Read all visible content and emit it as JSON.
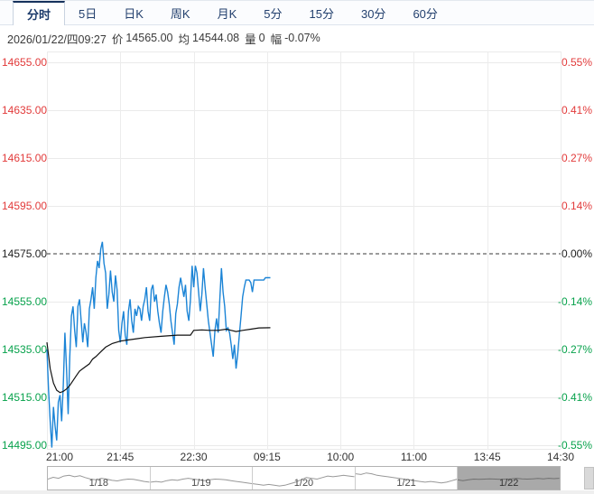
{
  "tabs": {
    "items": [
      {
        "label": "分时",
        "active": true
      },
      {
        "label": "5日",
        "active": false
      },
      {
        "label": "日K",
        "active": false
      },
      {
        "label": "周K",
        "active": false
      },
      {
        "label": "月K",
        "active": false
      },
      {
        "label": "5分",
        "active": false
      },
      {
        "label": "15分",
        "active": false
      },
      {
        "label": "30分",
        "active": false
      },
      {
        "label": "60分",
        "active": false
      }
    ]
  },
  "info_bar": {
    "datetime": "2026/01/22/四09:27",
    "price_label": "价",
    "price_value": "14565.00",
    "avg_label": "均",
    "avg_value": "14544.08",
    "volume_label": "量",
    "volume_value": "0",
    "range_label": "幅",
    "range_value": "-0.07%"
  },
  "colors": {
    "up": "#e23b3b",
    "down": "#08a24c",
    "flat": "#222222",
    "price_line": "#1b84d6",
    "avg_line": "#111111",
    "grid": "#eaeaea",
    "prev_close_dash": "#3a3a3a",
    "nav_selected_bg": "#a9a9a9",
    "nav_spark": "#989898",
    "active_tab_accent": "#16325c"
  },
  "chart_data": {
    "type": "line",
    "title": "Intraday (分时) price and average line",
    "prev_close": 14575.0,
    "ylim": [
      14495,
      14655
    ],
    "y_axis_left": [
      {
        "text": "14655.00",
        "tone": "up"
      },
      {
        "text": "14635.00",
        "tone": "up"
      },
      {
        "text": "14615.00",
        "tone": "up"
      },
      {
        "text": "14595.00",
        "tone": "up"
      },
      {
        "text": "14575.00",
        "tone": "flat"
      },
      {
        "text": "14555.00",
        "tone": "down"
      },
      {
        "text": "14535.00",
        "tone": "down"
      },
      {
        "text": "14515.00",
        "tone": "down"
      },
      {
        "text": "14495.00",
        "tone": "down"
      }
    ],
    "y_axis_right": [
      {
        "text": "0.55%",
        "tone": "up"
      },
      {
        "text": "0.41%",
        "tone": "up"
      },
      {
        "text": "0.27%",
        "tone": "up"
      },
      {
        "text": "0.14%",
        "tone": "up"
      },
      {
        "text": "0.00%",
        "tone": "flat"
      },
      {
        "text": "-0.14%",
        "tone": "down"
      },
      {
        "text": "-0.27%",
        "tone": "down"
      },
      {
        "text": "-0.41%",
        "tone": "down"
      },
      {
        "text": "-0.55%",
        "tone": "down"
      }
    ],
    "x_ticks": [
      "21:00",
      "21:45",
      "22:30",
      "09:15",
      "10:00",
      "11:00",
      "13:45",
      "14:30"
    ],
    "session_minutes_total": 315,
    "series": [
      {
        "name": "price",
        "points": [
          [
            0,
            14535
          ],
          [
            1,
            14518
          ],
          [
            2,
            14505
          ],
          [
            3,
            14494
          ],
          [
            4,
            14511
          ],
          [
            5,
            14503
          ],
          [
            6,
            14497
          ],
          [
            7,
            14513
          ],
          [
            8,
            14516
          ],
          [
            9,
            14505
          ],
          [
            10,
            14520
          ],
          [
            11,
            14542
          ],
          [
            12,
            14527
          ],
          [
            13,
            14508
          ],
          [
            14,
            14532
          ],
          [
            15,
            14549
          ],
          [
            16,
            14553
          ],
          [
            17,
            14543
          ],
          [
            18,
            14536
          ],
          [
            19,
            14553
          ],
          [
            20,
            14556
          ],
          [
            21,
            14547
          ],
          [
            22,
            14538
          ],
          [
            23,
            14546
          ],
          [
            24,
            14542
          ],
          [
            25,
            14536
          ],
          [
            26,
            14552
          ],
          [
            27,
            14556
          ],
          [
            28,
            14561
          ],
          [
            29,
            14552
          ],
          [
            30,
            14565
          ],
          [
            31,
            14572
          ],
          [
            32,
            14569
          ],
          [
            33,
            14577
          ],
          [
            34,
            14580
          ],
          [
            35,
            14571
          ],
          [
            36,
            14567
          ],
          [
            37,
            14552
          ],
          [
            38,
            14558
          ],
          [
            39,
            14568
          ],
          [
            40,
            14559
          ],
          [
            41,
            14555
          ],
          [
            42,
            14566
          ],
          [
            43,
            14560
          ],
          [
            44,
            14543
          ],
          [
            45,
            14538
          ],
          [
            46,
            14546
          ],
          [
            47,
            14551
          ],
          [
            48,
            14541
          ],
          [
            49,
            14537
          ],
          [
            50,
            14551
          ],
          [
            51,
            14556
          ],
          [
            52,
            14547
          ],
          [
            53,
            14542
          ],
          [
            54,
            14552
          ],
          [
            55,
            14549
          ],
          [
            56,
            14553
          ],
          [
            57,
            14552
          ],
          [
            58,
            14547
          ],
          [
            59,
            14553
          ],
          [
            60,
            14556
          ],
          [
            61,
            14561
          ],
          [
            62,
            14551
          ],
          [
            63,
            14547
          ],
          [
            64,
            14560
          ],
          [
            65,
            14562
          ],
          [
            66,
            14555
          ],
          [
            67,
            14558
          ],
          [
            68,
            14551
          ],
          [
            69,
            14546
          ],
          [
            70,
            14542
          ],
          [
            71,
            14551
          ],
          [
            72,
            14557
          ],
          [
            73,
            14562
          ],
          [
            74,
            14559
          ],
          [
            75,
            14554
          ],
          [
            76,
            14547
          ],
          [
            77,
            14542
          ],
          [
            78,
            14537
          ],
          [
            79,
            14550
          ],
          [
            80,
            14554
          ],
          [
            81,
            14561
          ],
          [
            82,
            14565
          ],
          [
            83,
            14561
          ],
          [
            84,
            14557
          ],
          [
            85,
            14562
          ],
          [
            86,
            14551
          ],
          [
            87,
            14547
          ],
          [
            88,
            14556
          ],
          [
            89,
            14570
          ],
          [
            90,
            14561
          ],
          [
            91,
            14570
          ],
          [
            92,
            14567
          ],
          [
            93,
            14559
          ],
          [
            94,
            14551
          ],
          [
            95,
            14558
          ],
          [
            96,
            14569
          ],
          [
            97,
            14561
          ],
          [
            98,
            14554
          ],
          [
            99,
            14547
          ],
          [
            100,
            14542
          ],
          [
            101,
            14537
          ],
          [
            102,
            14532
          ],
          [
            103,
            14543
          ],
          [
            104,
            14548
          ],
          [
            105,
            14542
          ],
          [
            106,
            14556
          ],
          [
            107,
            14569
          ],
          [
            108,
            14559
          ],
          [
            109,
            14553
          ],
          [
            110,
            14543
          ],
          [
            111,
            14544
          ],
          [
            112,
            14542
          ],
          [
            113,
            14537
          ],
          [
            114,
            14531
          ],
          [
            115,
            14537
          ],
          [
            116,
            14527
          ],
          [
            117,
            14533
          ],
          [
            118,
            14541
          ],
          [
            119,
            14549
          ],
          [
            120,
            14557
          ],
          [
            121,
            14561
          ],
          [
            122,
            14564
          ],
          [
            123,
            14564
          ],
          [
            124,
            14564
          ],
          [
            125,
            14563
          ],
          [
            126,
            14559
          ],
          [
            127,
            14564
          ],
          [
            128,
            14564
          ],
          [
            129,
            14564
          ],
          [
            130,
            14564
          ],
          [
            131,
            14564
          ],
          [
            132,
            14564
          ],
          [
            133,
            14564
          ],
          [
            134,
            14565
          ],
          [
            135,
            14565
          ],
          [
            136,
            14565
          ],
          [
            137,
            14565
          ]
        ]
      },
      {
        "name": "average",
        "points": [
          [
            0,
            14538
          ],
          [
            2,
            14527
          ],
          [
            4,
            14521
          ],
          [
            6,
            14518
          ],
          [
            8,
            14517
          ],
          [
            10,
            14517.5
          ],
          [
            12,
            14518.5
          ],
          [
            14,
            14520
          ],
          [
            16,
            14522
          ],
          [
            18,
            14524
          ],
          [
            20,
            14526
          ],
          [
            23,
            14527.5
          ],
          [
            26,
            14529
          ],
          [
            28,
            14531
          ],
          [
            30,
            14532
          ],
          [
            33,
            14534
          ],
          [
            36,
            14536
          ],
          [
            40,
            14537.5
          ],
          [
            45,
            14538.5
          ],
          [
            50,
            14539
          ],
          [
            55,
            14539.5
          ],
          [
            60,
            14540
          ],
          [
            70,
            14540.5
          ],
          [
            80,
            14541
          ],
          [
            88,
            14541
          ],
          [
            90,
            14543
          ],
          [
            95,
            14543.2
          ],
          [
            100,
            14543
          ],
          [
            105,
            14543
          ],
          [
            110,
            14543.5
          ],
          [
            113,
            14543
          ],
          [
            116,
            14542.5
          ],
          [
            120,
            14543
          ],
          [
            125,
            14543.5
          ],
          [
            130,
            14544
          ],
          [
            137,
            14544.1
          ]
        ]
      }
    ],
    "legend": null,
    "grid": true
  },
  "navigator": {
    "days": [
      {
        "label": "1/18",
        "selected": false,
        "wave": [
          0.5,
          0.62,
          0.55,
          0.7,
          0.75,
          0.65,
          0.72,
          0.6,
          0.5,
          0.45,
          0.55,
          0.5,
          0.42,
          0.38,
          0.45,
          0.5,
          0.48,
          0.42,
          0.35,
          0.3
        ]
      },
      {
        "label": "1/19",
        "selected": false,
        "wave": [
          0.3,
          0.35,
          0.3,
          0.4,
          0.45,
          0.42,
          0.5,
          0.55,
          0.5,
          0.45,
          0.4,
          0.45,
          0.5,
          0.48,
          0.45,
          0.4,
          0.35,
          0.3,
          0.25,
          0.2
        ]
      },
      {
        "label": "1/20",
        "selected": false,
        "wave": [
          0.2,
          0.15,
          0.1,
          0.15,
          0.1,
          0.05,
          0.1,
          0.2,
          0.3,
          0.45,
          0.6,
          0.55,
          0.5,
          0.6,
          0.7,
          0.65,
          0.7,
          0.75,
          0.7,
          0.65
        ]
      },
      {
        "label": "1/21",
        "selected": false,
        "wave": [
          0.85,
          0.8,
          0.9,
          0.85,
          0.75,
          0.7,
          0.65,
          0.6,
          0.55,
          0.5,
          0.45,
          0.4,
          0.35,
          0.3,
          0.35,
          0.3,
          0.25,
          0.3,
          0.4,
          0.5
        ]
      },
      {
        "label": "1/22",
        "selected": true,
        "wave": [
          0.45,
          0.4,
          0.45,
          0.5,
          0.48,
          0.5,
          0.52,
          0.5,
          0.48,
          0.5,
          0.52,
          0.55,
          0.52,
          0.5,
          0.52,
          0.54,
          0.52,
          0.55,
          0.53,
          0.55
        ]
      }
    ]
  }
}
